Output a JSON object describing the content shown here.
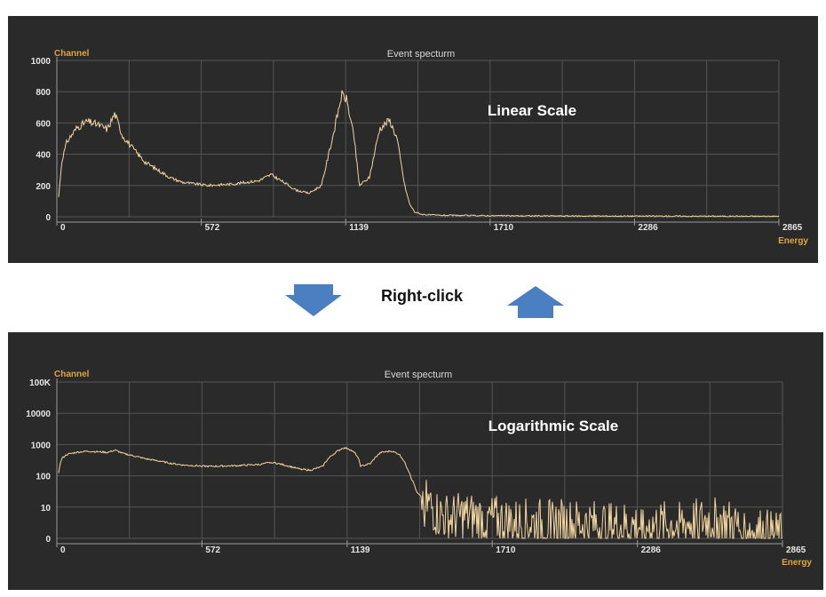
{
  "chart_data": [
    {
      "type": "line",
      "title": "Event specturm",
      "ylabel": "Channel",
      "xlabel": "Energy",
      "annotation": "Linear Scale",
      "scale": "linear",
      "xlim": [
        0,
        2865
      ],
      "ylim": [
        0,
        1000
      ],
      "x_ticks": [
        "0",
        "572",
        "1139",
        "1710",
        "2286",
        "2865"
      ],
      "y_ticks": [
        "0",
        "200",
        "400",
        "600",
        "800",
        "1000"
      ],
      "grid": true,
      "series": [
        {
          "x": [
            0,
            20,
            40,
            80,
            120,
            160,
            200,
            230,
            260,
            300,
            350,
            400,
            450,
            500,
            600,
            700,
            800,
            850,
            900,
            950,
            1000,
            1050,
            1100,
            1130,
            1150,
            1180,
            1200,
            1240,
            1280,
            1320,
            1350,
            1380,
            1400,
            1420,
            1450,
            1500,
            1600,
            1800,
            2000,
            2400,
            2865
          ],
          "y": [
            0,
            360,
            480,
            570,
            610,
            590,
            560,
            660,
            520,
            440,
            350,
            300,
            250,
            220,
            200,
            210,
            230,
            270,
            220,
            170,
            150,
            200,
            550,
            780,
            750,
            500,
            200,
            250,
            560,
            620,
            500,
            200,
            80,
            30,
            15,
            10,
            8,
            6,
            5,
            4,
            3
          ]
        }
      ]
    },
    {
      "type": "line",
      "title": "Event specturm",
      "ylabel": "Channel",
      "xlabel": "Energy",
      "annotation": "Logarithmic Scale",
      "scale": "log",
      "xlim": [
        0,
        2865
      ],
      "ylim": [
        1,
        100000
      ],
      "x_ticks": [
        "0",
        "572",
        "1139",
        "1710",
        "2286",
        "2865"
      ],
      "y_ticks": [
        "0",
        "10",
        "100",
        "1000",
        "10000",
        "100K"
      ],
      "grid": true,
      "series": [
        {
          "x": [
            0,
            20,
            40,
            80,
            120,
            160,
            200,
            230,
            260,
            300,
            350,
            400,
            450,
            500,
            600,
            700,
            800,
            850,
            900,
            950,
            1000,
            1050,
            1100,
            1130,
            1150,
            1180,
            1200,
            1240,
            1280,
            1320,
            1350,
            1380,
            1400,
            1420,
            1450,
            1500,
            1550,
            1600,
            1700,
            1800,
            2000,
            2200,
            2400,
            2500,
            2600,
            2700,
            2865
          ],
          "y": [
            1,
            360,
            480,
            570,
            610,
            590,
            560,
            660,
            520,
            440,
            350,
            300,
            250,
            220,
            200,
            210,
            230,
            270,
            220,
            170,
            150,
            200,
            550,
            780,
            750,
            500,
            200,
            250,
            560,
            620,
            500,
            200,
            80,
            30,
            15,
            6,
            4,
            5,
            4,
            3,
            3,
            2.5,
            2.5,
            3,
            4,
            2,
            1
          ]
        }
      ]
    }
  ],
  "middle": {
    "label": "Right-click",
    "arrow_color": "#4a7fc1"
  }
}
